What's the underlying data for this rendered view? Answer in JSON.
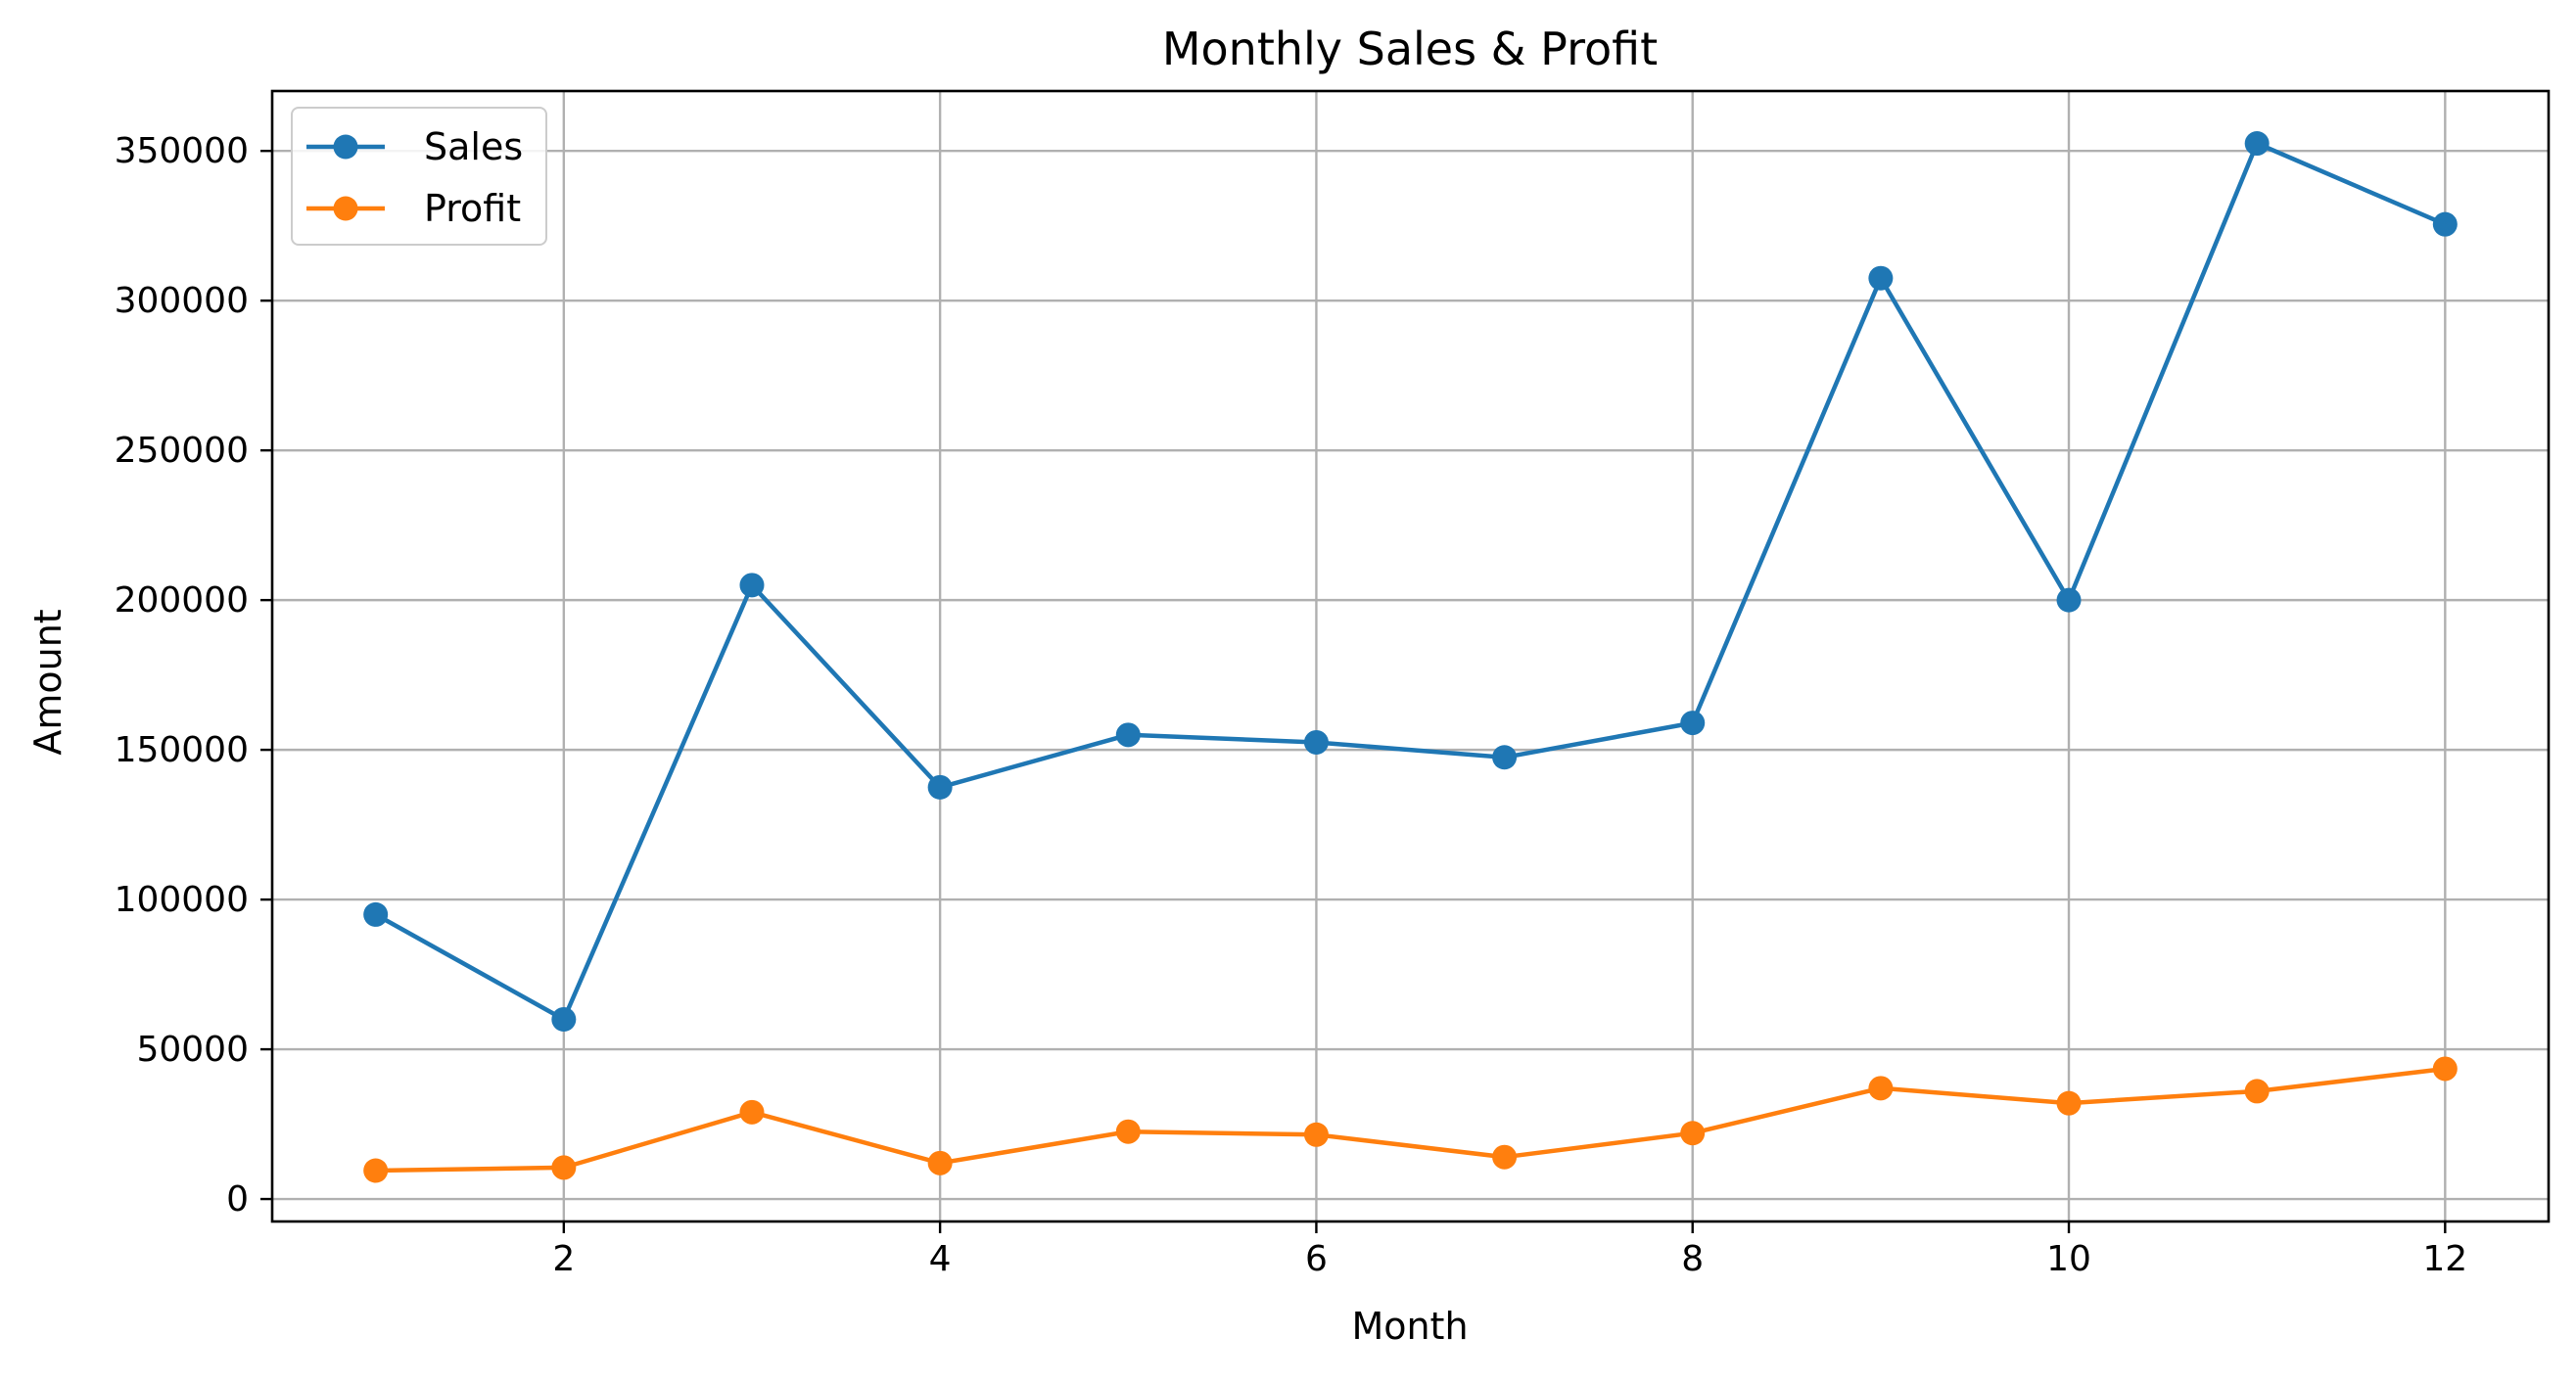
{
  "chart_data": {
    "type": "line",
    "title": "Monthly Sales & Profit",
    "xlabel": "Month",
    "ylabel": "Amount",
    "x": [
      1,
      2,
      3,
      4,
      5,
      6,
      7,
      8,
      9,
      10,
      11,
      12
    ],
    "series": [
      {
        "name": "Sales",
        "color": "#1f77b4",
        "marker": "circle",
        "values": [
          95000,
          60000,
          205000,
          137500,
          155000,
          152500,
          147500,
          159000,
          307500,
          200000,
          352500,
          325500
        ]
      },
      {
        "name": "Profit",
        "color": "#ff7f0e",
        "marker": "circle",
        "values": [
          9500,
          10500,
          29000,
          12000,
          22500,
          21500,
          14000,
          22000,
          37000,
          32000,
          36000,
          43500
        ]
      }
    ],
    "xlim": [
      0.45,
      12.55
    ],
    "ylim": [
      -7500,
      370000
    ],
    "xticks": [
      2,
      4,
      6,
      8,
      10,
      12
    ],
    "yticks": [
      0,
      50000,
      100000,
      150000,
      200000,
      250000,
      300000,
      350000
    ],
    "grid": true,
    "legend_position": "top-left"
  }
}
